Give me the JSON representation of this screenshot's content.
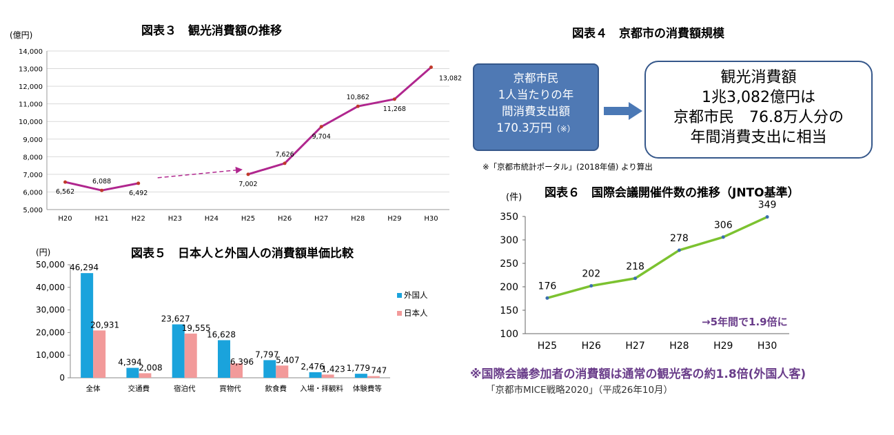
{
  "chart_data": [
    {
      "type": "line",
      "title": "図表３　観光消費額の推移",
      "ylabel": "(億円)",
      "categories": [
        "H20",
        "H21",
        "H22",
        "H23",
        "H24",
        "H25",
        "H26",
        "H27",
        "H28",
        "H29",
        "H30"
      ],
      "values": [
        6562,
        6088,
        6492,
        null,
        null,
        7002,
        7626,
        9704,
        10862,
        11268,
        13082
      ],
      "data_labels": [
        "6,562",
        "6,088",
        "6,492",
        "",
        "",
        "7,002",
        "7,626",
        "9,704",
        "10,862",
        "11,268",
        "13,082"
      ],
      "yticks": [
        "5,000",
        "6,000",
        "7,000",
        "8,000",
        "9,000",
        "10,000",
        "11,000",
        "12,000",
        "13,000",
        "14,000"
      ],
      "ylim": [
        5000,
        14000
      ],
      "grid": true,
      "line_color": "#b0268e"
    },
    {
      "type": "bar",
      "title": "図表５　日本人と外国人の消費額単価比較",
      "ylabel": "(円)",
      "categories": [
        "全体",
        "交通費",
        "宿泊代",
        "買物代",
        "飲食費",
        "入場・拝観料",
        "体験費等"
      ],
      "series": [
        {
          "name": "外国人",
          "color": "#1aa3dc",
          "values": [
            46294,
            4394,
            23627,
            16628,
            7797,
            2476,
            1779
          ]
        },
        {
          "name": "日本人",
          "color": "#f29a9a",
          "values": [
            20931,
            2008,
            19555,
            6396,
            5407,
            1423,
            747
          ]
        }
      ],
      "data_labels": [
        [
          "46,294",
          "4,394",
          "23,627",
          "16,628",
          "7,797",
          "2,476",
          "1,779"
        ],
        [
          "20,931",
          "2,008",
          "19,555",
          "6,396",
          "5,407",
          "1,423",
          "747"
        ]
      ],
      "yticks": [
        "0",
        "10,000",
        "20,000",
        "30,000",
        "40,000",
        "50,000"
      ],
      "ylim": [
        0,
        50000
      ],
      "legend_position": "right"
    },
    {
      "type": "line",
      "title": "図表６　国際会議開催件数の推移（JNTO基準）",
      "ylabel": "(件)",
      "categories": [
        "H25",
        "H26",
        "H27",
        "H28",
        "H29",
        "H30"
      ],
      "values": [
        176,
        202,
        218,
        278,
        306,
        349
      ],
      "data_labels": [
        "176",
        "202",
        "218",
        "278",
        "306",
        "349"
      ],
      "yticks": [
        "100",
        "150",
        "200",
        "250",
        "300",
        "350"
      ],
      "ylim": [
        100,
        350
      ],
      "grid": false,
      "line_color": "#7cc230",
      "annotation": "→5年間で1.9倍に"
    }
  ],
  "fig4": {
    "title": "図表４　京都市の消費額規模",
    "left_lines": [
      "京都市民",
      "1人当たりの年",
      "間消費支出額"
    ],
    "left_value": "170.3万円",
    "left_note": "（※）",
    "right_lines": [
      "観光消費額",
      "1兆3,082億円は",
      "京都市民　76.8万人分の",
      "年間消費支出に相当"
    ],
    "footnote": "※「京都市統計ポータル」(2018年値) より算出",
    "arrow_color": "#4a78b5"
  },
  "footer": {
    "note": "※国際会議参加者の消費額は通常の観光客の約1.8倍(外国人客)",
    "source": "「京都市MICE戦略2020」（平成26年10月）"
  }
}
